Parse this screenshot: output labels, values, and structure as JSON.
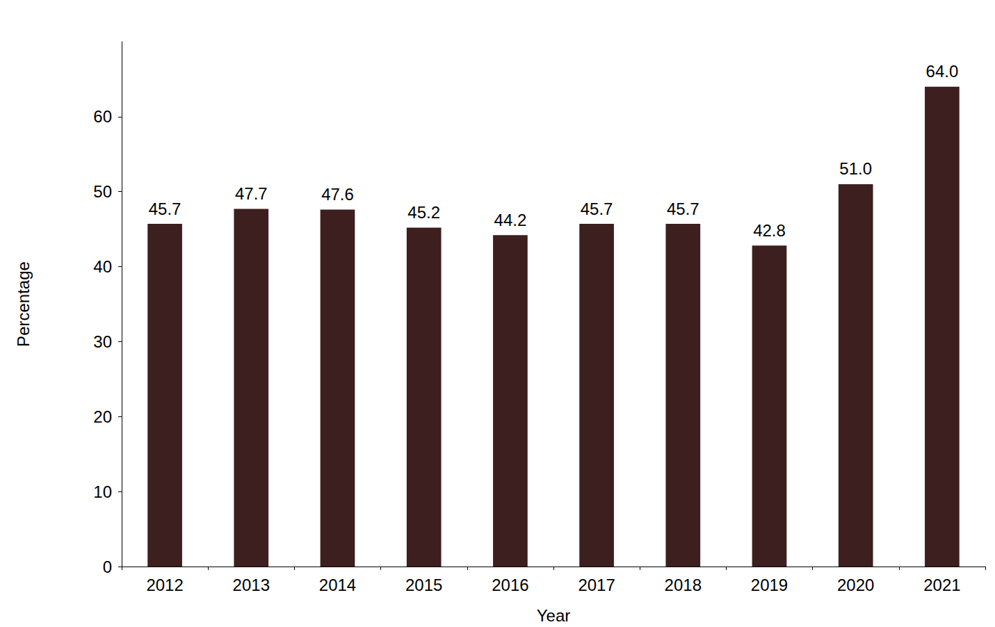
{
  "chart_data": {
    "type": "bar",
    "x_label": "Year",
    "y_label": "Percentage",
    "categories": [
      "2012",
      "2013",
      "2014",
      "2015",
      "2016",
      "2017",
      "2018",
      "2019",
      "2020",
      "2021"
    ],
    "values": [
      45.7,
      47.7,
      47.6,
      45.2,
      44.2,
      45.7,
      45.7,
      42.8,
      51.0,
      64.0
    ],
    "value_labels": [
      "45.7",
      "47.7",
      "47.6",
      "45.2",
      "44.2",
      "45.7",
      "45.7",
      "42.8",
      "51.0",
      "64.0"
    ],
    "color": "#3d1f1f",
    "ylim": [
      0,
      70
    ],
    "yticks": [
      0,
      10,
      20,
      30,
      40,
      50,
      60
    ],
    "grid": false,
    "data_labels": true
  }
}
